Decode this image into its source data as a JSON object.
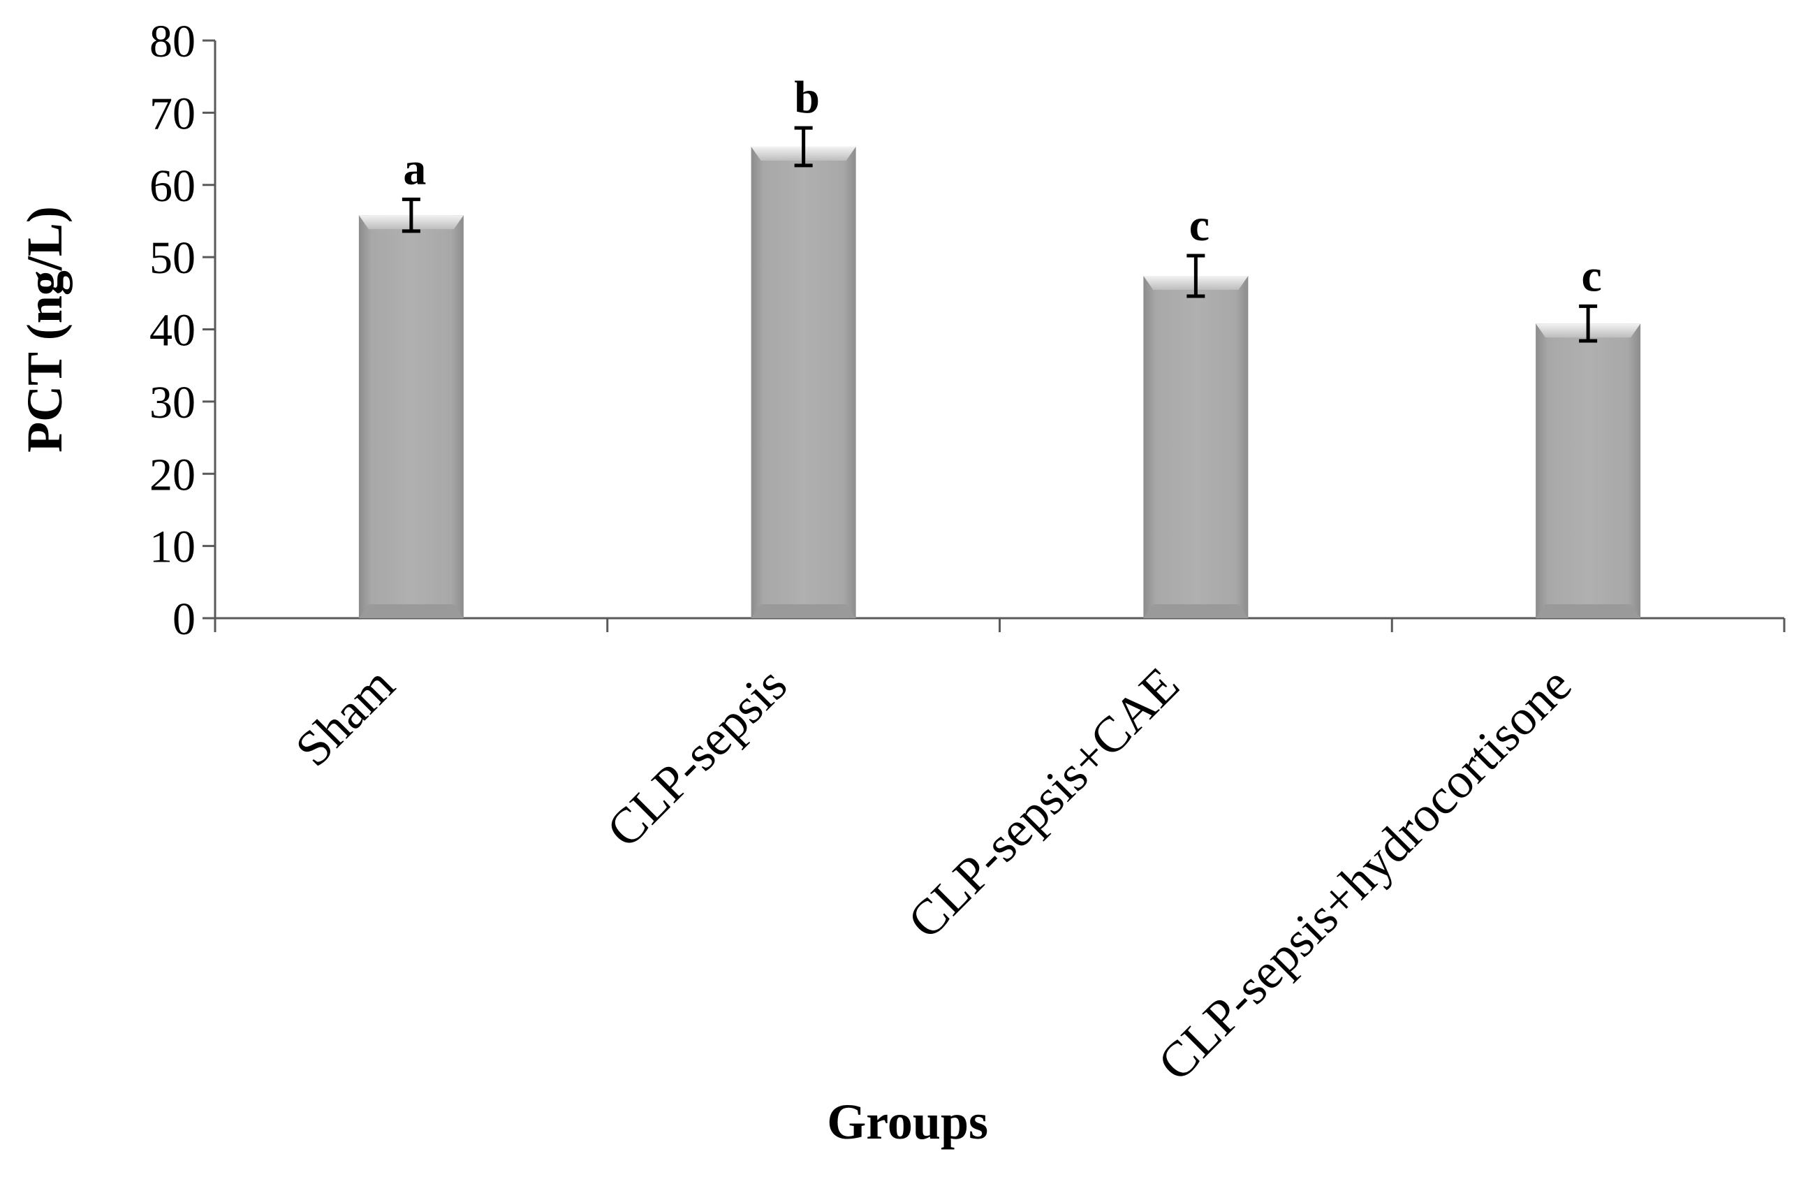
{
  "chart_data": {
    "type": "bar",
    "categories": [
      "Sham",
      "CLP-sepsis",
      "CLP-sepsis+CAE",
      "CLP-sepsis+hydrocortisone"
    ],
    "values": [
      55.8,
      65.3,
      47.4,
      40.8
    ],
    "errors": [
      2.2,
      2.6,
      2.8,
      2.4
    ],
    "significance_labels": [
      "a",
      "b",
      "c",
      "c"
    ],
    "xlabel": "Groups",
    "ylabel": "PCT (ng/L)",
    "ylim": [
      0,
      80
    ],
    "yticks": [
      0,
      10,
      20,
      30,
      40,
      50,
      60,
      70,
      80
    ],
    "grid": false,
    "colors": {
      "bar": "#a6a6a6",
      "bar_edge": "#bfbfbf",
      "error_bar": "#000000",
      "axis": "#595959"
    }
  }
}
